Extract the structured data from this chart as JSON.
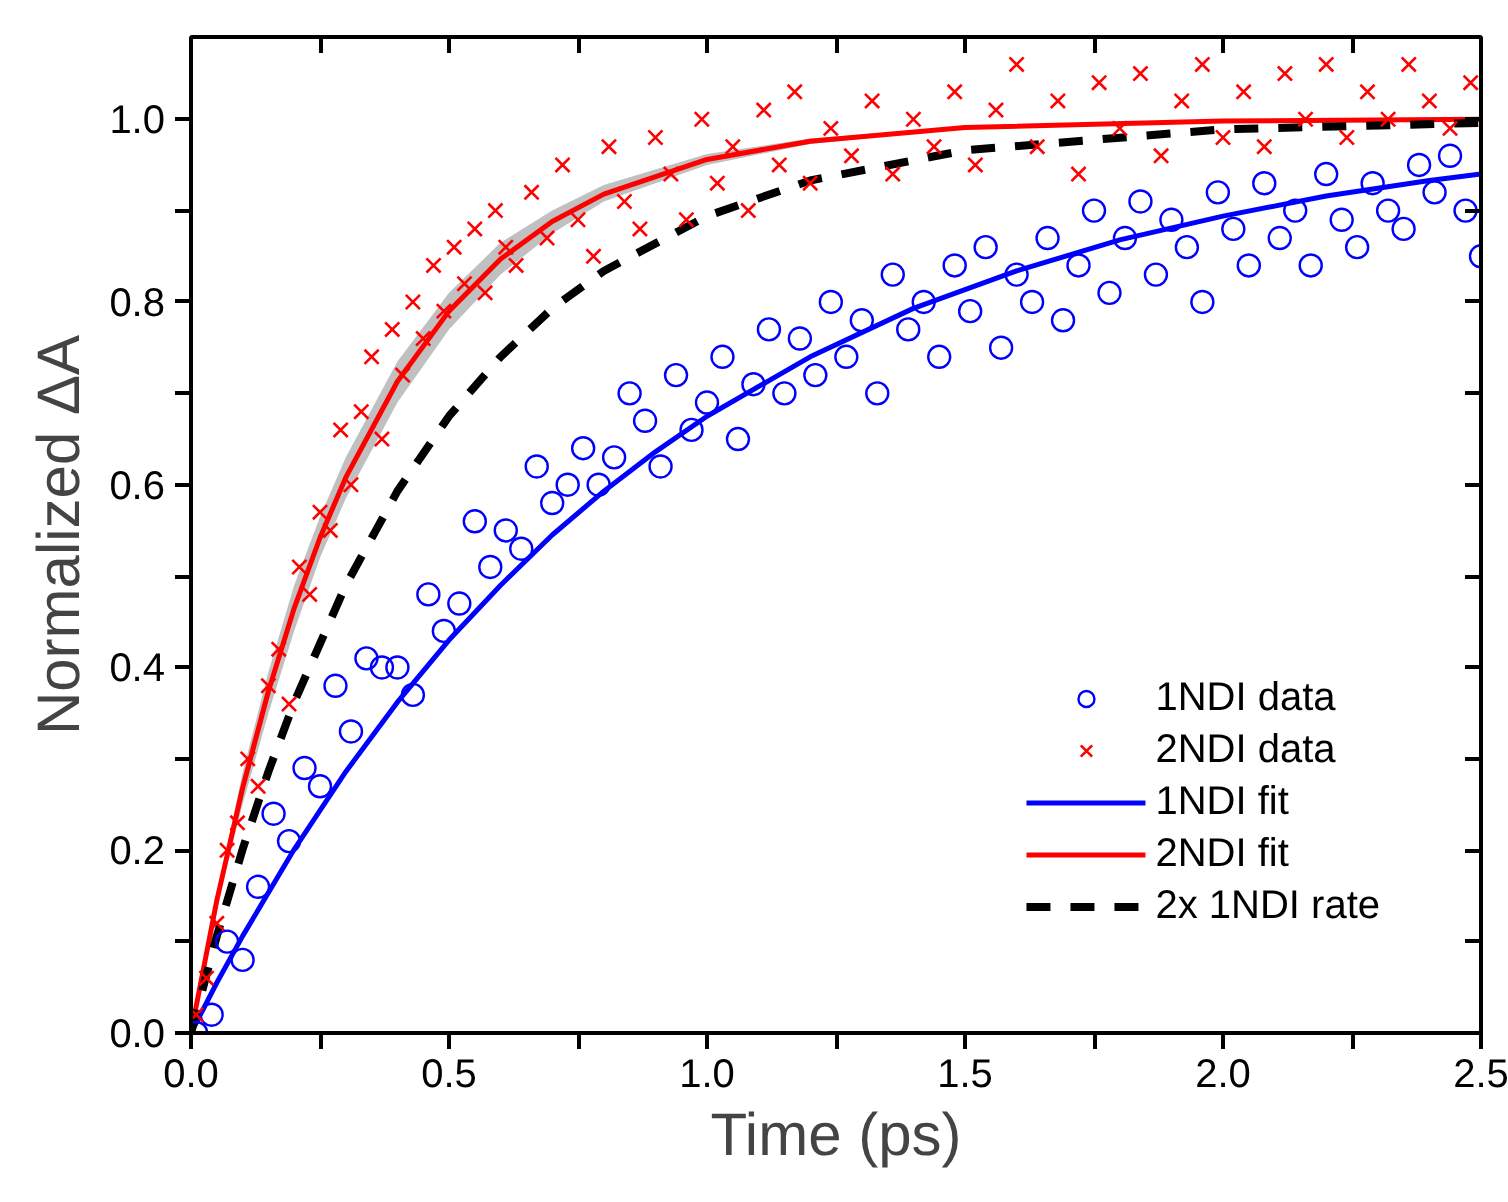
{
  "chart_data": {
    "type": "scatter",
    "xlabel": "Time (ps)",
    "ylabel": "Normalized ΔA",
    "xlim": [
      0,
      2.5
    ],
    "ylim": [
      0,
      1.09
    ],
    "xticks": [
      {
        "value": 0,
        "label": "0.0"
      },
      {
        "value": 0.25,
        "label": null
      },
      {
        "value": 0.5,
        "label": "0.5"
      },
      {
        "value": 0.75,
        "label": null
      },
      {
        "value": 1,
        "label": "1.0"
      },
      {
        "value": 1.25,
        "label": null
      },
      {
        "value": 1.5,
        "label": "1.5"
      },
      {
        "value": 1.75,
        "label": null
      },
      {
        "value": 2,
        "label": "2.0"
      },
      {
        "value": 2.25,
        "label": null
      },
      {
        "value": 2.5,
        "label": "2.5"
      }
    ],
    "yticks": [
      {
        "value": 0,
        "label": "0.0"
      },
      {
        "value": 0.1,
        "label": null
      },
      {
        "value": 0.2,
        "label": "0.2"
      },
      {
        "value": 0.3,
        "label": null
      },
      {
        "value": 0.4,
        "label": "0.4"
      },
      {
        "value": 0.5,
        "label": null
      },
      {
        "value": 0.6,
        "label": "0.6"
      },
      {
        "value": 0.7,
        "label": null
      },
      {
        "value": 0.8,
        "label": "0.8"
      },
      {
        "value": 0.9,
        "label": null
      },
      {
        "value": 1,
        "label": "1.0"
      }
    ],
    "grid": false,
    "legend": "bottom right",
    "series": [
      {
        "name": "1NDI data",
        "marker": "circle",
        "color": "#0000ff",
        "x": [
          0.01,
          0.04,
          0.07,
          0.1,
          0.13,
          0.16,
          0.19,
          0.22,
          0.25,
          0.28,
          0.31,
          0.34,
          0.37,
          0.4,
          0.43,
          0.46,
          0.49,
          0.52,
          0.55,
          0.58,
          0.61,
          0.64,
          0.67,
          0.7,
          0.73,
          0.76,
          0.79,
          0.82,
          0.85,
          0.88,
          0.91,
          0.94,
          0.97,
          1.0,
          1.03,
          1.06,
          1.09,
          1.12,
          1.15,
          1.18,
          1.21,
          1.24,
          1.27,
          1.3,
          1.33,
          1.36,
          1.39,
          1.42,
          1.45,
          1.48,
          1.51,
          1.54,
          1.57,
          1.6,
          1.63,
          1.66,
          1.69,
          1.72,
          1.75,
          1.78,
          1.81,
          1.84,
          1.87,
          1.9,
          1.93,
          1.96,
          1.99,
          2.02,
          2.05,
          2.08,
          2.11,
          2.14,
          2.17,
          2.2,
          2.23,
          2.26,
          2.29,
          2.32,
          2.35,
          2.38,
          2.41,
          2.44,
          2.47,
          2.5
        ],
        "values": [
          0.0,
          0.02,
          0.1,
          0.08,
          0.16,
          0.24,
          0.21,
          0.29,
          0.27,
          0.38,
          0.33,
          0.41,
          0.4,
          0.4,
          0.37,
          0.48,
          0.44,
          0.47,
          0.56,
          0.51,
          0.55,
          0.53,
          0.62,
          0.58,
          0.6,
          0.64,
          0.6,
          0.63,
          0.7,
          0.67,
          0.62,
          0.72,
          0.66,
          0.69,
          0.74,
          0.65,
          0.71,
          0.77,
          0.7,
          0.76,
          0.72,
          0.8,
          0.74,
          0.78,
          0.7,
          0.83,
          0.77,
          0.8,
          0.74,
          0.84,
          0.79,
          0.86,
          0.75,
          0.83,
          0.8,
          0.87,
          0.78,
          0.84,
          0.9,
          0.81,
          0.87,
          0.91,
          0.83,
          0.89,
          0.86,
          0.8,
          0.92,
          0.88,
          0.84,
          0.93,
          0.87,
          0.9,
          0.84,
          0.94,
          0.89,
          0.86,
          0.93,
          0.9,
          0.88,
          0.95,
          0.92,
          0.96,
          0.9,
          0.85
        ]
      },
      {
        "name": "2NDI data",
        "marker": "cross",
        "color": "#ff0000",
        "x": [
          0.01,
          0.03,
          0.05,
          0.07,
          0.09,
          0.11,
          0.13,
          0.15,
          0.17,
          0.19,
          0.21,
          0.23,
          0.25,
          0.27,
          0.29,
          0.31,
          0.33,
          0.35,
          0.37,
          0.39,
          0.41,
          0.43,
          0.45,
          0.47,
          0.49,
          0.51,
          0.53,
          0.55,
          0.57,
          0.59,
          0.61,
          0.63,
          0.66,
          0.69,
          0.72,
          0.75,
          0.78,
          0.81,
          0.84,
          0.87,
          0.9,
          0.93,
          0.96,
          0.99,
          1.02,
          1.05,
          1.08,
          1.11,
          1.14,
          1.17,
          1.2,
          1.24,
          1.28,
          1.32,
          1.36,
          1.4,
          1.44,
          1.48,
          1.52,
          1.56,
          1.6,
          1.64,
          1.68,
          1.72,
          1.76,
          1.8,
          1.84,
          1.88,
          1.92,
          1.96,
          2.0,
          2.04,
          2.08,
          2.12,
          2.16,
          2.2,
          2.24,
          2.28,
          2.32,
          2.36,
          2.4,
          2.44,
          2.48
        ],
        "values": [
          0.02,
          0.06,
          0.12,
          0.2,
          0.23,
          0.3,
          0.27,
          0.38,
          0.42,
          0.36,
          0.51,
          0.48,
          0.57,
          0.55,
          0.66,
          0.6,
          0.68,
          0.74,
          0.65,
          0.77,
          0.72,
          0.8,
          0.76,
          0.84,
          0.79,
          0.86,
          0.82,
          0.88,
          0.81,
          0.9,
          0.86,
          0.84,
          0.92,
          0.87,
          0.95,
          0.89,
          0.85,
          0.97,
          0.91,
          0.88,
          0.98,
          0.94,
          0.89,
          1.0,
          0.93,
          0.97,
          0.9,
          1.01,
          0.95,
          1.03,
          0.93,
          0.99,
          0.96,
          1.02,
          0.94,
          1.0,
          0.97,
          1.03,
          0.95,
          1.01,
          1.06,
          0.97,
          1.02,
          0.94,
          1.04,
          0.99,
          1.05,
          0.96,
          1.02,
          1.06,
          0.98,
          1.03,
          0.97,
          1.05,
          1.0,
          1.06,
          0.98,
          1.03,
          1.0,
          1.06,
          1.02,
          0.99,
          1.04
        ]
      },
      {
        "name": "1NDI fit",
        "type": "line",
        "line_style": "solid",
        "color": "#0000ff",
        "x": [
          0,
          0.05,
          0.1,
          0.2,
          0.3,
          0.4,
          0.5,
          0.6,
          0.7,
          0.8,
          0.9,
          1.0,
          1.2,
          1.4,
          1.6,
          1.8,
          2.0,
          2.2,
          2.4,
          2.5
        ],
        "values": [
          0,
          0.055,
          0.106,
          0.201,
          0.286,
          0.362,
          0.43,
          0.49,
          0.545,
          0.593,
          0.636,
          0.675,
          0.74,
          0.793,
          0.834,
          0.868,
          0.894,
          0.916,
          0.933,
          0.94
        ]
      },
      {
        "name": "2NDI fit",
        "type": "line",
        "line_style": "solid",
        "color": "#ff0000",
        "x": [
          0,
          0.05,
          0.1,
          0.15,
          0.2,
          0.25,
          0.3,
          0.4,
          0.5,
          0.6,
          0.7,
          0.8,
          1.0,
          1.2,
          1.5,
          2.0,
          2.5
        ],
        "values": [
          0,
          0.145,
          0.268,
          0.374,
          0.465,
          0.542,
          0.608,
          0.713,
          0.79,
          0.847,
          0.888,
          0.918,
          0.956,
          0.976,
          0.991,
          0.998,
          1.0
        ],
        "lower": [
          0,
          0.14,
          0.25,
          0.35,
          0.44,
          0.52,
          0.585,
          0.69,
          0.77,
          0.83,
          0.875,
          0.91,
          0.95,
          0.973,
          0.99,
          0.998,
          1.0
        ],
        "upper": [
          0,
          0.15,
          0.285,
          0.395,
          0.49,
          0.565,
          0.63,
          0.735,
          0.81,
          0.865,
          0.9,
          0.928,
          0.962,
          0.979,
          0.992,
          0.998,
          1.0
        ]
      },
      {
        "name": "2x 1NDI rate",
        "type": "line",
        "line_style": "dashed",
        "color": "#000000",
        "x": [
          0,
          0.05,
          0.1,
          0.15,
          0.2,
          0.3,
          0.4,
          0.5,
          0.6,
          0.7,
          0.8,
          1.0,
          1.2,
          1.5,
          2.0,
          2.5
        ],
        "values": [
          0,
          0.106,
          0.201,
          0.286,
          0.362,
          0.49,
          0.593,
          0.675,
          0.74,
          0.793,
          0.834,
          0.894,
          0.933,
          0.966,
          0.989,
          0.996
        ]
      }
    ]
  }
}
